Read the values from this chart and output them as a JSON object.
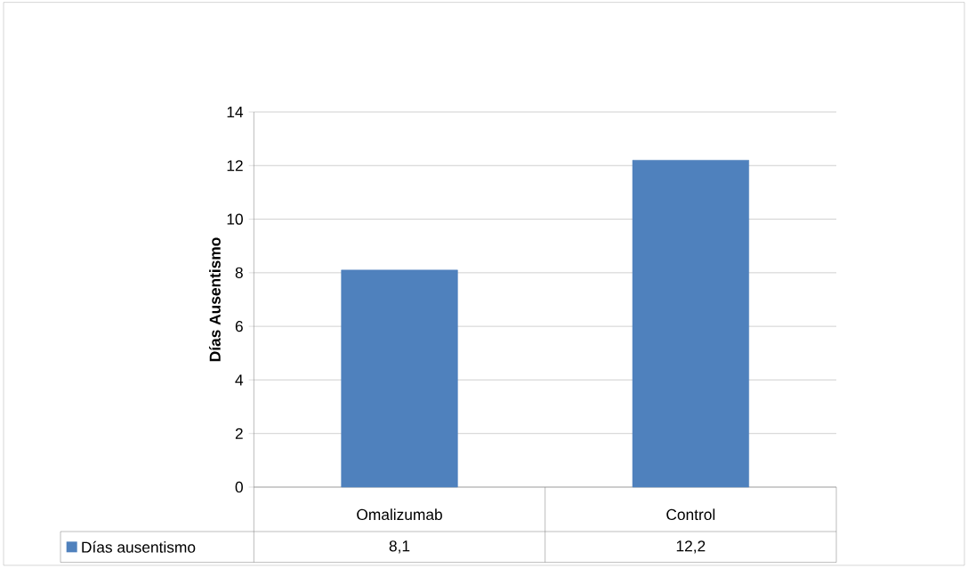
{
  "chart_data": {
    "type": "bar",
    "ylabel": "**Días Ausentismo**",
    "categories": [
      "Omalizumab",
      "Control"
    ],
    "series": [
      {
        "name": "Días ausentismo",
        "color": "#4f81bd",
        "values": [
          8.1,
          12.2
        ],
        "value_labels": [
          "8,1",
          "12,2"
        ]
      }
    ],
    "ylim": [
      0,
      14
    ],
    "yticks": [
      0,
      2,
      4,
      6,
      8,
      10,
      12,
      14
    ],
    "grid": "y"
  }
}
